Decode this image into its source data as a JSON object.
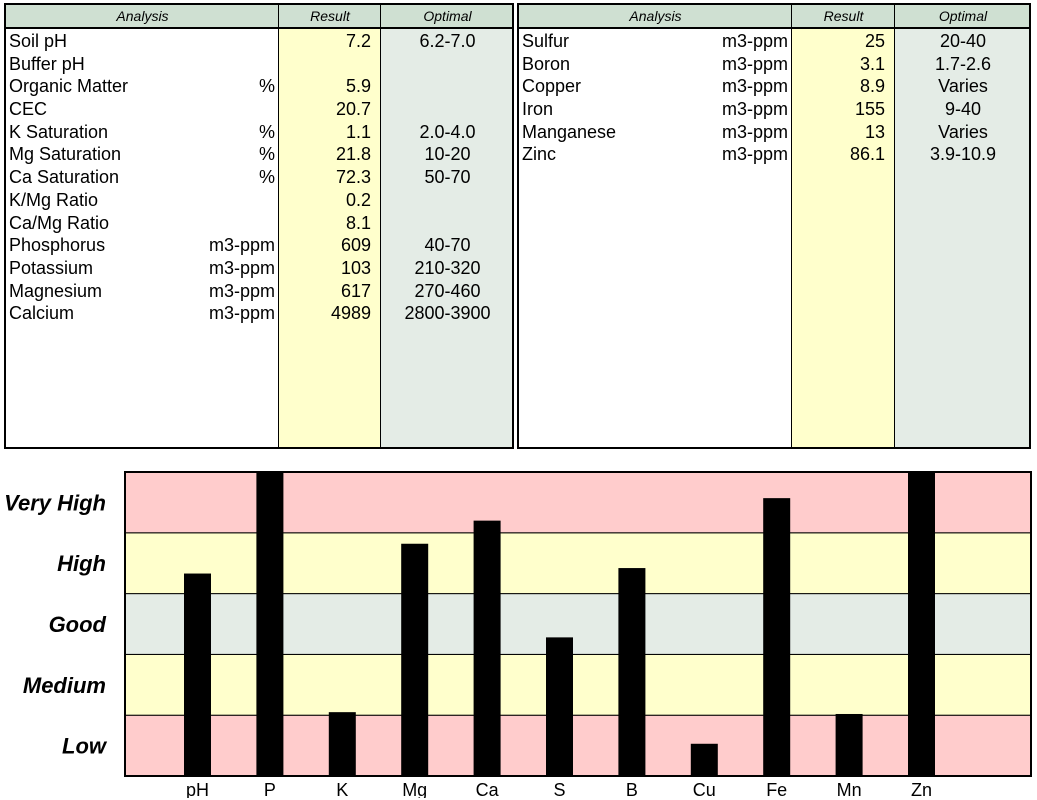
{
  "left_table": {
    "headers": {
      "analysis": "Analysis",
      "result": "Result",
      "optimal": "Optimal"
    },
    "rows": [
      {
        "name": "Soil pH",
        "unit": "",
        "result": "7.2",
        "optimal": "6.2-7.0"
      },
      {
        "name": "Buffer pH",
        "unit": "",
        "result": "",
        "optimal": ""
      },
      {
        "name": "Organic Matter",
        "unit": "%",
        "result": "5.9",
        "optimal": ""
      },
      {
        "name": "CEC",
        "unit": "",
        "result": "20.7",
        "optimal": ""
      },
      {
        "name": "K Saturation",
        "unit": "%",
        "result": "1.1",
        "optimal": "2.0-4.0"
      },
      {
        "name": "Mg Saturation",
        "unit": "%",
        "result": "21.8",
        "optimal": "10-20"
      },
      {
        "name": "Ca Saturation",
        "unit": "%",
        "result": "72.3",
        "optimal": "50-70"
      },
      {
        "name": "K/Mg Ratio",
        "unit": "",
        "result": "0.2",
        "optimal": ""
      },
      {
        "name": "Ca/Mg Ratio",
        "unit": "",
        "result": "8.1",
        "optimal": ""
      },
      {
        "name": "Phosphorus",
        "unit": "m3-ppm",
        "result": "609",
        "optimal": "40-70"
      },
      {
        "name": "Potassium",
        "unit": "m3-ppm",
        "result": "103",
        "optimal": "210-320"
      },
      {
        "name": "Magnesium",
        "unit": "m3-ppm",
        "result": "617",
        "optimal": "270-460"
      },
      {
        "name": "Calcium",
        "unit": "m3-ppm",
        "result": "4989",
        "optimal": "2800-3900"
      }
    ]
  },
  "right_table": {
    "headers": {
      "analysis": "Analysis",
      "result": "Result",
      "optimal": "Optimal"
    },
    "rows": [
      {
        "name": "Sulfur",
        "unit": "m3-ppm",
        "result": "25",
        "optimal": "20-40"
      },
      {
        "name": "Boron",
        "unit": "m3-ppm",
        "result": "3.1",
        "optimal": "1.7-2.6"
      },
      {
        "name": "Copper",
        "unit": "m3-ppm",
        "result": "8.9",
        "optimal": "Varies"
      },
      {
        "name": "Iron",
        "unit": "m3-ppm",
        "result": "155",
        "optimal": "9-40"
      },
      {
        "name": "Manganese",
        "unit": "m3-ppm",
        "result": "13",
        "optimal": "Varies"
      },
      {
        "name": "Zinc",
        "unit": "m3-ppm",
        "result": "86.1",
        "optimal": "3.9-10.9"
      }
    ]
  },
  "colors": {
    "header_bg": "#cfe0d2",
    "result_col": "#ffffcc",
    "optimal_col": "#e4ece6",
    "band_very_high": "#ffcccc",
    "band_high": "#ffffcc",
    "band_good": "#e4ece6",
    "band_medium": "#ffffcc",
    "band_low": "#ffcccc",
    "bar": "#000000"
  },
  "chart_data": {
    "type": "bar",
    "categories": [
      "pH",
      "P",
      "K",
      "Mg",
      "Ca",
      "S",
      "B",
      "Cu",
      "Fe",
      "Mn",
      "Zn"
    ],
    "bands": [
      "Low",
      "Medium",
      "Good",
      "High",
      "Very High"
    ],
    "values": [
      3.33,
      5.0,
      1.05,
      3.82,
      4.2,
      2.28,
      3.42,
      0.53,
      4.57,
      1.02,
      5.0
    ],
    "ylim": [
      0,
      5
    ],
    "grid": true,
    "title": "",
    "xlabel": "",
    "ylabel": ""
  }
}
